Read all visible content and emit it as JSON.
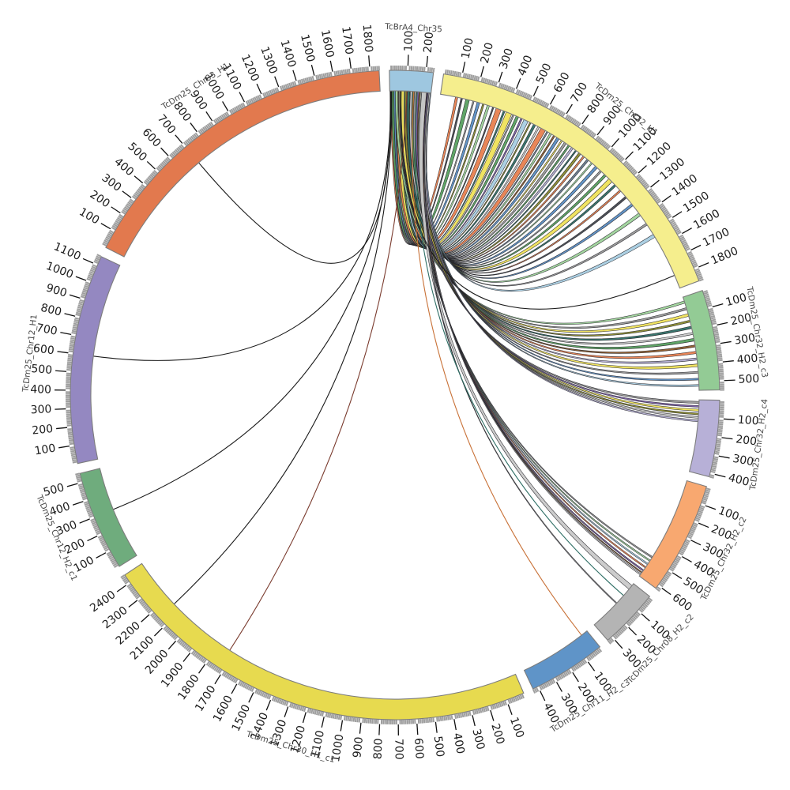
{
  "figure": {
    "description": "Circos-style chord diagram of synteny links between chromosome TcBrA4_Chr35 and TcDm25 assembly contigs"
  },
  "chart_data": {
    "type": "chord",
    "legend": "none",
    "grid": "off",
    "layout": {
      "center": [
        500,
        500
      ],
      "outer_radius": 411,
      "band_thickness": 26,
      "start_angle_deg": 91,
      "gap_deg": 1.8,
      "tick_minor": 10,
      "tick_major": 100,
      "tick_label_radius_offset": 24,
      "name_label_radius_offset": 54
    },
    "segments": [
      {
        "name": "TcBrA4_Chr35",
        "length": 240,
        "color": "#9ec7e0"
      },
      {
        "name": "TcDm25_Chr32_H1",
        "length": 1870,
        "color": "#f5ee8d"
      },
      {
        "name": "TcDm25_Chr32_H2_c3",
        "length": 550,
        "color": "#93cb95"
      },
      {
        "name": "TcDm25_Chr32_H2_c4",
        "length": 420,
        "color": "#b7b0d7"
      },
      {
        "name": "TcDm25_Chr32_H2_c2",
        "length": 620,
        "color": "#f8a870"
      },
      {
        "name": "TcDm25_Chr08_H2_c2",
        "length": 330,
        "color": "#b4b4b4"
      },
      {
        "name": "TcDm25_Chr11_H2_c3",
        "length": 430,
        "color": "#5f94c8"
      },
      {
        "name": "TcDm25_Chr30_H1_c1",
        "length": 2450,
        "color": "#e7da4f"
      },
      {
        "name": "TcDm25_Chr12_H2_c1",
        "length": 550,
        "color": "#6fac7d"
      },
      {
        "name": "TcDm25_Chr12_H1",
        "length": 1150,
        "color": "#9488c1"
      },
      {
        "name": "TcDm25_Chr03_H1",
        "length": 1850,
        "color": "#e2794e"
      }
    ],
    "link_colors": [
      "#e8804f",
      "#c87137",
      "#8a8a2e",
      "#efe25a",
      "#9fd49b",
      "#57a05f",
      "#2f6f66",
      "#5b8ec4",
      "#a8cee2",
      "#999999",
      "#c9c9c9",
      "#7b5ea7",
      "#b3aed3",
      "#8b5a2b",
      "#7a3b2e",
      "#44484f",
      "#6a7b8f",
      "#1a1a1a"
    ],
    "links_format": "[source_start_on_TcBrA4_Chr35, width, target_segment_index, target_center, color_index]; width<=2 rendered as a thin line",
    "links": [
      [
        10,
        14,
        1,
        95,
        0
      ],
      [
        16,
        10,
        1,
        125,
        15
      ],
      [
        22,
        22,
        1,
        160,
        5
      ],
      [
        28,
        8,
        1,
        195,
        9
      ],
      [
        33,
        16,
        1,
        225,
        7
      ],
      [
        39,
        10,
        1,
        255,
        2
      ],
      [
        44,
        14,
        1,
        285,
        4
      ],
      [
        50,
        8,
        1,
        315,
        15
      ],
      [
        55,
        30,
        1,
        348,
        0
      ],
      [
        62,
        10,
        1,
        382,
        6
      ],
      [
        67,
        34,
        1,
        412,
        3
      ],
      [
        73,
        8,
        1,
        440,
        9
      ],
      [
        78,
        16,
        1,
        465,
        5
      ],
      [
        84,
        10,
        1,
        492,
        11
      ],
      [
        89,
        26,
        1,
        520,
        8
      ],
      [
        95,
        8,
        1,
        548,
        2
      ],
      [
        100,
        14,
        1,
        575,
        6
      ],
      [
        106,
        10,
        1,
        602,
        10
      ],
      [
        111,
        30,
        1,
        632,
        0
      ],
      [
        117,
        8,
        1,
        660,
        16
      ],
      [
        122,
        12,
        1,
        682,
        4
      ],
      [
        127,
        10,
        1,
        706,
        13
      ],
      [
        132,
        16,
        1,
        732,
        7
      ],
      [
        138,
        8,
        1,
        758,
        3
      ],
      [
        143,
        14,
        1,
        782,
        9
      ],
      [
        148,
        10,
        1,
        808,
        5
      ],
      [
        153,
        12,
        1,
        832,
        12
      ],
      [
        158,
        8,
        1,
        858,
        6
      ],
      [
        163,
        14,
        1,
        886,
        2
      ],
      [
        168,
        10,
        1,
        915,
        0
      ],
      [
        173,
        12,
        1,
        945,
        16
      ],
      [
        178,
        8,
        1,
        975,
        4
      ],
      [
        183,
        16,
        1,
        1010,
        7
      ],
      [
        188,
        10,
        1,
        1045,
        9
      ],
      [
        193,
        14,
        1,
        1080,
        5
      ],
      [
        198,
        26,
        1,
        1122,
        3
      ],
      [
        203,
        12,
        1,
        1162,
        6
      ],
      [
        208,
        10,
        1,
        1205,
        0
      ],
      [
        213,
        12,
        1,
        1255,
        15
      ],
      [
        218,
        14,
        1,
        1312,
        7
      ],
      [
        224,
        18,
        1,
        1382,
        4
      ],
      [
        230,
        12,
        1,
        1452,
        9
      ],
      [
        236,
        20,
        1,
        1532,
        8
      ],
      [
        40,
        14,
        2,
        30,
        4
      ],
      [
        58,
        12,
        2,
        70,
        9
      ],
      [
        76,
        16,
        2,
        108,
        3
      ],
      [
        94,
        12,
        2,
        145,
        2
      ],
      [
        110,
        14,
        2,
        182,
        6
      ],
      [
        126,
        12,
        2,
        218,
        10
      ],
      [
        142,
        16,
        2,
        255,
        5
      ],
      [
        156,
        12,
        2,
        292,
        13
      ],
      [
        170,
        14,
        2,
        330,
        0
      ],
      [
        184,
        12,
        2,
        368,
        12
      ],
      [
        196,
        16,
        2,
        405,
        3
      ],
      [
        208,
        10,
        2,
        445,
        9
      ],
      [
        218,
        10,
        2,
        485,
        7
      ],
      [
        228,
        10,
        2,
        522,
        8
      ],
      [
        150,
        12,
        3,
        15,
        9
      ],
      [
        165,
        10,
        3,
        38,
        11
      ],
      [
        180,
        12,
        3,
        60,
        3
      ],
      [
        195,
        10,
        3,
        82,
        2
      ],
      [
        210,
        10,
        3,
        102,
        10
      ],
      [
        222,
        10,
        3,
        122,
        12
      ],
      [
        182,
        8,
        4,
        488,
        9
      ],
      [
        192,
        8,
        4,
        512,
        4
      ],
      [
        202,
        8,
        4,
        535,
        8
      ],
      [
        212,
        8,
        4,
        558,
        0
      ],
      [
        222,
        8,
        4,
        580,
        11
      ],
      [
        228,
        6,
        4,
        595,
        13
      ],
      [
        232,
        8,
        4,
        608,
        10
      ],
      [
        200,
        28,
        5,
        28,
        10
      ],
      [
        226,
        6,
        5,
        150,
        9
      ],
      [
        3,
        2,
        10,
        700,
        17
      ],
      [
        6,
        2,
        9,
        600,
        17
      ],
      [
        9,
        2,
        8,
        300,
        17
      ],
      [
        12,
        2,
        7,
        2150,
        17
      ],
      [
        100,
        2,
        7,
        1730,
        14
      ],
      [
        60,
        2,
        1,
        1790,
        17
      ],
      [
        140,
        2,
        6,
        40,
        1
      ],
      [
        160,
        2,
        5,
        90,
        6
      ]
    ]
  }
}
